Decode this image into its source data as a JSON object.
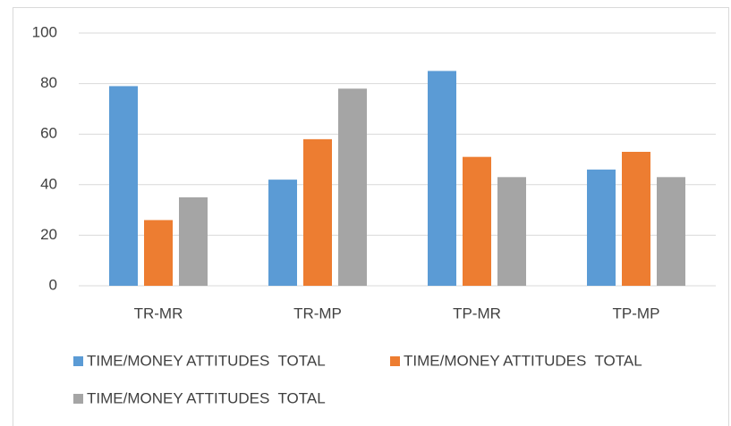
{
  "chart_data": {
    "type": "bar",
    "categories": [
      "TR-MR",
      "TR-MP",
      "TP-MR",
      "TP-MP"
    ],
    "series": [
      {
        "name": "TIME/MONEY ATTITUDES  TOTAL",
        "color": "#5b9bd5",
        "values": [
          79,
          42,
          85,
          46
        ]
      },
      {
        "name": "TIME/MONEY ATTITUDES  TOTAL",
        "color": "#ed7d31",
        "values": [
          26,
          58,
          51,
          53
        ]
      },
      {
        "name": "TIME/MONEY ATTITUDES  TOTAL",
        "color": "#a5a5a5",
        "values": [
          35,
          78,
          43,
          43
        ]
      }
    ],
    "ylim": [
      0,
      100
    ],
    "yticks": [
      0,
      20,
      40,
      60,
      80,
      100
    ],
    "grid": true,
    "legend": "bottom"
  }
}
